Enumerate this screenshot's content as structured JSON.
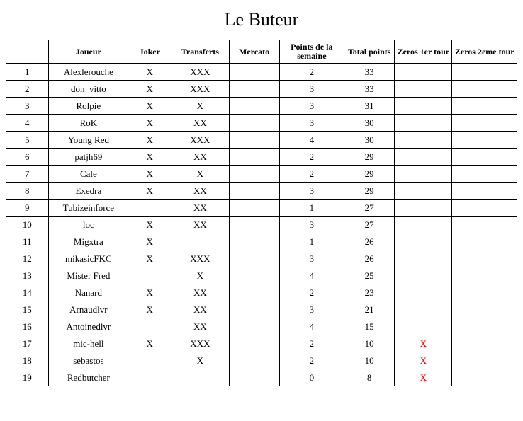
{
  "title": "Le Buteur",
  "colors": {
    "title_border": "#5b9bd5",
    "table_border": "#000000",
    "zeros_mark": "#ff0000",
    "background": "#ffffff"
  },
  "columns": {
    "rank": "",
    "player": "Joueur",
    "joker": "Joker",
    "transfers": "Transferts",
    "mercato": "Mercato",
    "points_week": "Points de la semaine",
    "total_points": "Total points",
    "zeros_1er": "Zeros 1er tour",
    "zeros_2eme": "Zeros 2eme tour"
  },
  "rows": [
    {
      "rank": "1",
      "player": "Alexlerouche",
      "joker": "X",
      "transfers": "XXX",
      "mercato": "",
      "points_week": "2",
      "total_points": "33",
      "zeros_1er": "",
      "zeros_2eme": ""
    },
    {
      "rank": "2",
      "player": "don_vitto",
      "joker": "X",
      "transfers": "XXX",
      "mercato": "",
      "points_week": "3",
      "total_points": "33",
      "zeros_1er": "",
      "zeros_2eme": ""
    },
    {
      "rank": "3",
      "player": "Rolpie",
      "joker": "X",
      "transfers": "X",
      "mercato": "",
      "points_week": "3",
      "total_points": "31",
      "zeros_1er": "",
      "zeros_2eme": ""
    },
    {
      "rank": "4",
      "player": "RoK",
      "joker": "X",
      "transfers": "XX",
      "mercato": "",
      "points_week": "3",
      "total_points": "30",
      "zeros_1er": "",
      "zeros_2eme": ""
    },
    {
      "rank": "5",
      "player": "Young Red",
      "joker": "X",
      "transfers": "XXX",
      "mercato": "",
      "points_week": "4",
      "total_points": "30",
      "zeros_1er": "",
      "zeros_2eme": ""
    },
    {
      "rank": "6",
      "player": "patjh69",
      "joker": "X",
      "transfers": "XX",
      "mercato": "",
      "points_week": "2",
      "total_points": "29",
      "zeros_1er": "",
      "zeros_2eme": ""
    },
    {
      "rank": "7",
      "player": "Cale",
      "joker": "X",
      "transfers": "X",
      "mercato": "",
      "points_week": "2",
      "total_points": "29",
      "zeros_1er": "",
      "zeros_2eme": ""
    },
    {
      "rank": "8",
      "player": "Exedra",
      "joker": "X",
      "transfers": "XX",
      "mercato": "",
      "points_week": "3",
      "total_points": "29",
      "zeros_1er": "",
      "zeros_2eme": ""
    },
    {
      "rank": "9",
      "player": "Tubizeinforce",
      "joker": "",
      "transfers": "XX",
      "mercato": "",
      "points_week": "1",
      "total_points": "27",
      "zeros_1er": "",
      "zeros_2eme": ""
    },
    {
      "rank": "10",
      "player": "loc",
      "joker": "X",
      "transfers": "XX",
      "mercato": "",
      "points_week": "3",
      "total_points": "27",
      "zeros_1er": "",
      "zeros_2eme": ""
    },
    {
      "rank": "11",
      "player": "Migxtra",
      "joker": "X",
      "transfers": "",
      "mercato": "",
      "points_week": "1",
      "total_points": "26",
      "zeros_1er": "",
      "zeros_2eme": ""
    },
    {
      "rank": "12",
      "player": "mikasicFKC",
      "joker": "X",
      "transfers": "XXX",
      "mercato": "",
      "points_week": "3",
      "total_points": "26",
      "zeros_1er": "",
      "zeros_2eme": ""
    },
    {
      "rank": "13",
      "player": "Mister Fred",
      "joker": "",
      "transfers": "X",
      "mercato": "",
      "points_week": "4",
      "total_points": "25",
      "zeros_1er": "",
      "zeros_2eme": ""
    },
    {
      "rank": "14",
      "player": "Nanard",
      "joker": "X",
      "transfers": "XX",
      "mercato": "",
      "points_week": "2",
      "total_points": "23",
      "zeros_1er": "",
      "zeros_2eme": ""
    },
    {
      "rank": "15",
      "player": "Arnaudlvr",
      "joker": "X",
      "transfers": "XX",
      "mercato": "",
      "points_week": "3",
      "total_points": "21",
      "zeros_1er": "",
      "zeros_2eme": ""
    },
    {
      "rank": "16",
      "player": "Antoinedlvr",
      "joker": "",
      "transfers": "XX",
      "mercato": "",
      "points_week": "4",
      "total_points": "15",
      "zeros_1er": "",
      "zeros_2eme": ""
    },
    {
      "rank": "17",
      "player": "mic-hell",
      "joker": "X",
      "transfers": "XXX",
      "mercato": "",
      "points_week": "2",
      "total_points": "10",
      "zeros_1er": "X",
      "zeros_2eme": ""
    },
    {
      "rank": "18",
      "player": "sebastos",
      "joker": "",
      "transfers": "X",
      "mercato": "",
      "points_week": "2",
      "total_points": "10",
      "zeros_1er": "X",
      "zeros_2eme": ""
    },
    {
      "rank": "19",
      "player": "Redbutcher",
      "joker": "",
      "transfers": "",
      "mercato": "",
      "points_week": "0",
      "total_points": "8",
      "zeros_1er": "X",
      "zeros_2eme": ""
    }
  ]
}
